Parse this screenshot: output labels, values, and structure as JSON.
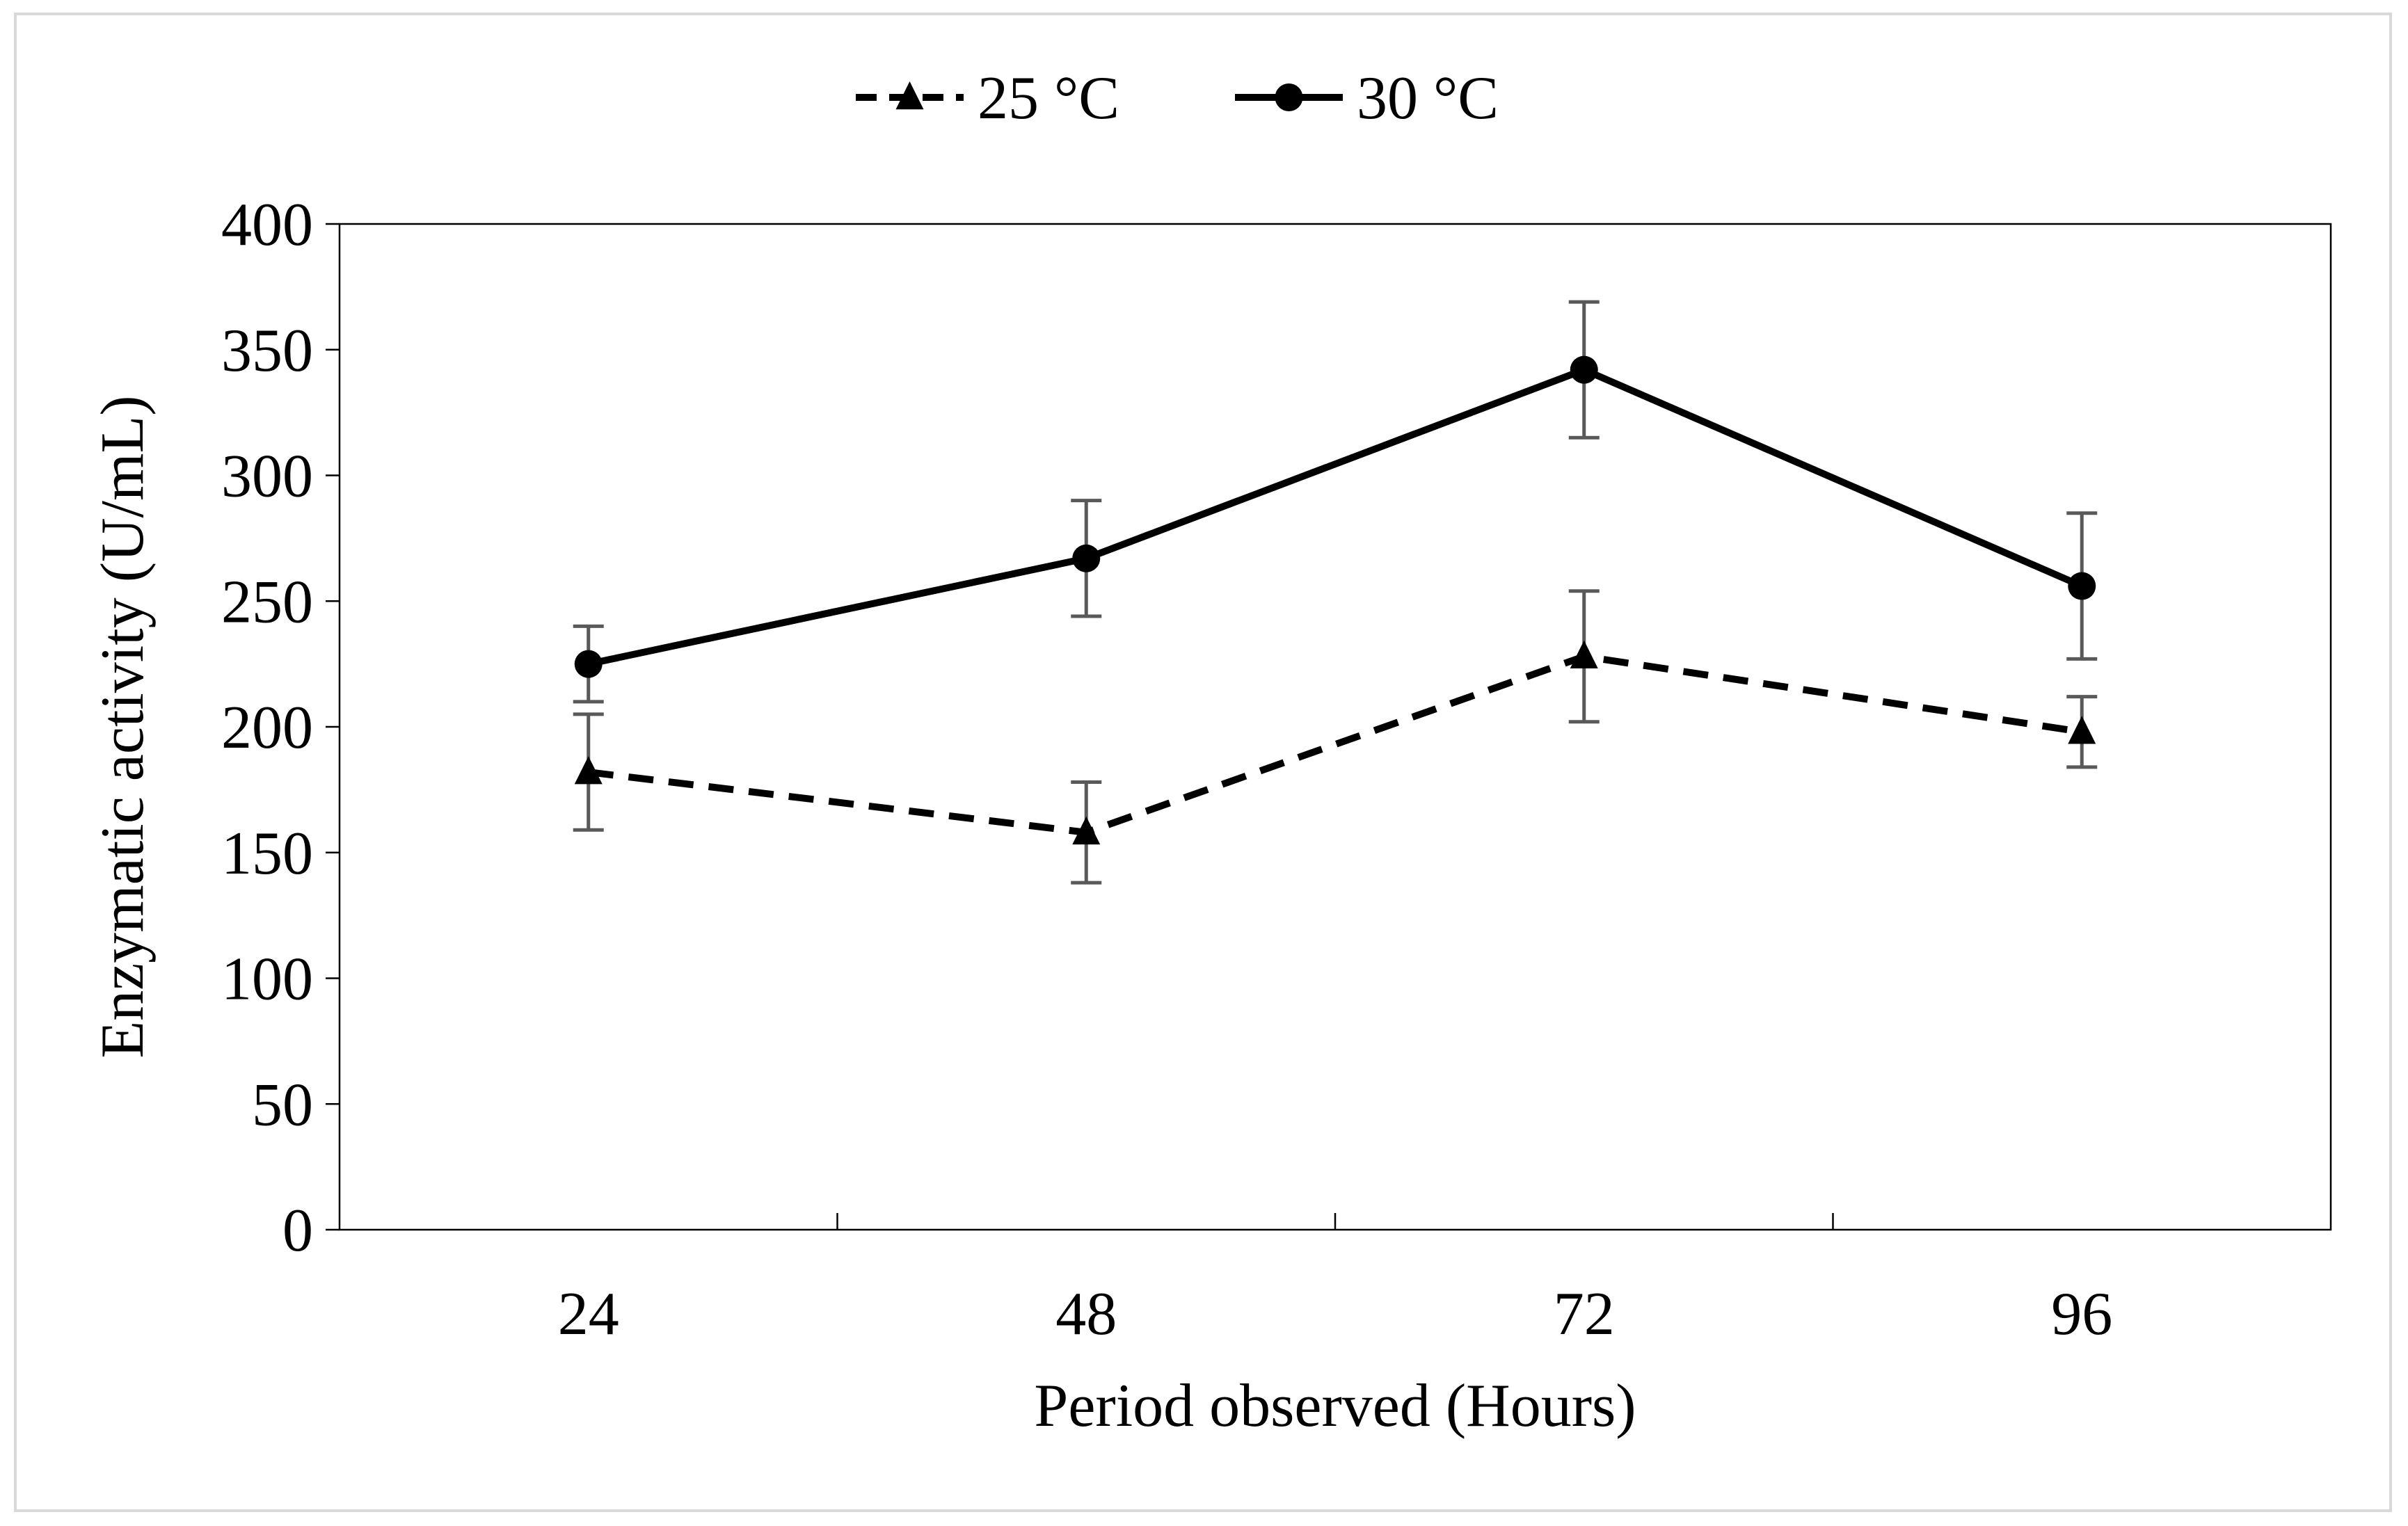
{
  "chart_data": {
    "type": "line",
    "title": "",
    "xlabel": "Period observed (Hours)",
    "ylabel": "Enzymatic activity (U/mL)",
    "categories": [
      "24",
      "48",
      "72",
      "96"
    ],
    "ylim": [
      0,
      400
    ],
    "yticks": [
      0,
      50,
      100,
      150,
      200,
      250,
      300,
      350,
      400
    ],
    "grid": false,
    "legend_position": "top-center",
    "series": [
      {
        "name": "25 °C",
        "line_style": "dashed",
        "marker": "triangle",
        "values": [
          182,
          158,
          228,
          198
        ],
        "error": [
          23,
          20,
          26,
          14
        ]
      },
      {
        "name": "30 °C",
        "line_style": "solid",
        "marker": "circle",
        "values": [
          225,
          267,
          342,
          256
        ],
        "error": [
          15,
          23,
          27,
          29
        ]
      }
    ],
    "colors": {
      "line": "#000000",
      "error_bar": "#595959",
      "axis": "#000000",
      "frame": "#d9d9d9"
    }
  }
}
